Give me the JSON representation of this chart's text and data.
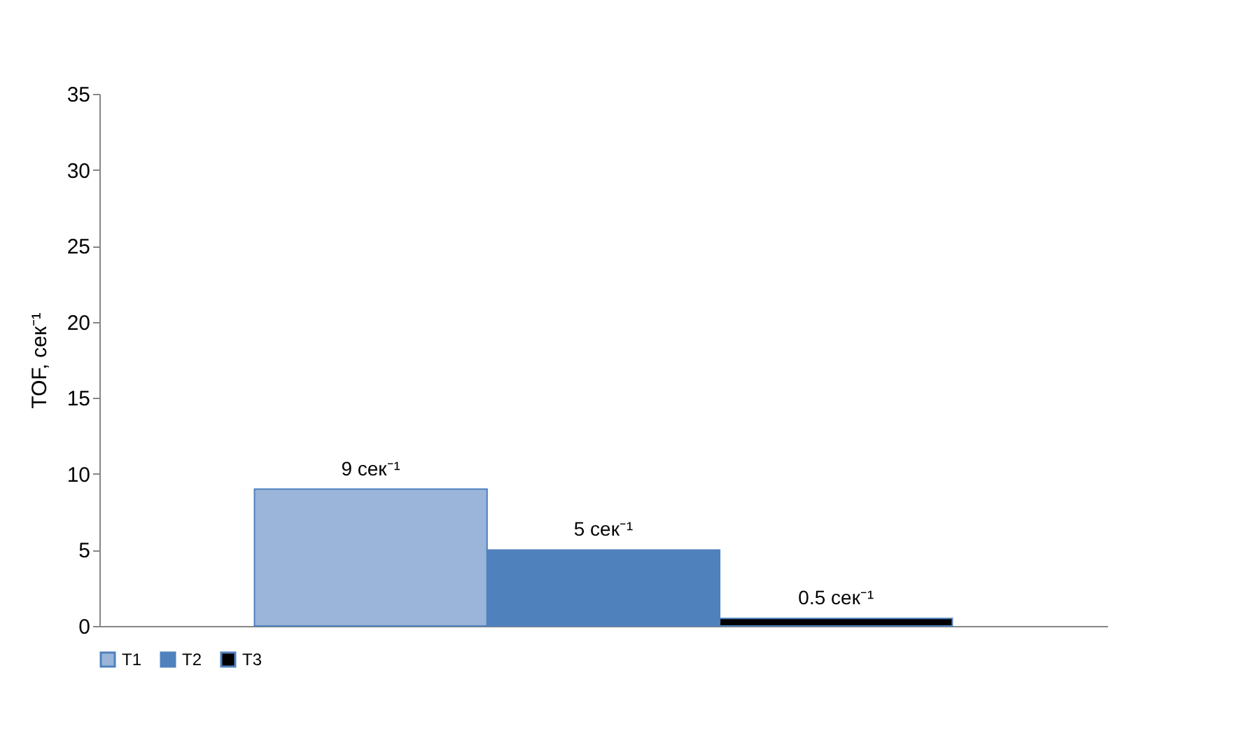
{
  "chart_data": {
    "type": "bar",
    "ylabel": "TOF, сек⁻¹",
    "categories": [
      null
    ],
    "series": [
      {
        "name": "T1",
        "color": "#9ab5d9",
        "values": [
          9
        ],
        "value_labels": [
          "9 сек⁻¹"
        ]
      },
      {
        "name": "T2",
        "color": "#4f81bd",
        "values": [
          5
        ],
        "value_labels": [
          "5 сек⁻¹"
        ]
      },
      {
        "name": "T3",
        "color": "#000000",
        "values": [
          0.5
        ],
        "value_labels": [
          "0.5 сек⁻¹"
        ]
      }
    ],
    "ylim": [
      0,
      35
    ],
    "yticks": [
      0,
      5,
      10,
      15,
      20,
      25,
      30,
      35
    ],
    "grid": false,
    "legend": "bottom",
    "tick_labels": "y"
  }
}
